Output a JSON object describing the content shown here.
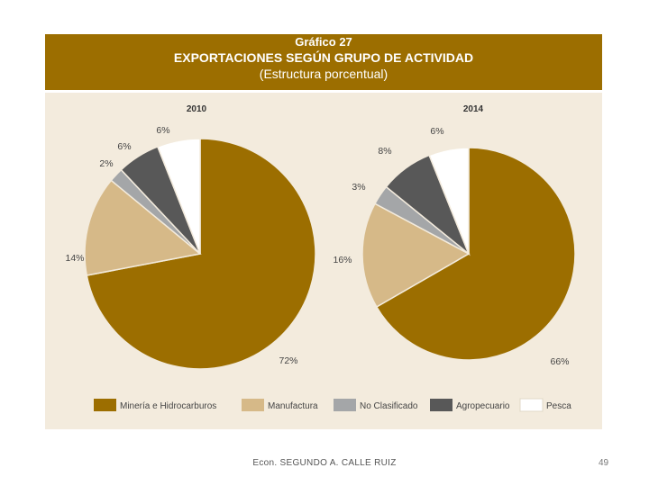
{
  "header": {
    "title": "Gráfico 27",
    "subtitle": "EXPORTACIONES SEGÚN GRUPO DE ACTIVIDAD",
    "note": "(Estructura porcentual)"
  },
  "chart_data": {
    "type": "pie",
    "title": "EXPORTACIONES SEGÚN GRUPO DE ACTIVIDAD",
    "subtitle": "(Estructura porcentual)",
    "legend_position": "bottom",
    "categories": [
      "Minería e Hidrocarburos",
      "Manufactura",
      "No Clasificado",
      "Agropecuario",
      "Pesca"
    ],
    "colors": [
      "#9c6e00",
      "#d6b988",
      "#a4a6a8",
      "#585858",
      "#ffffff"
    ],
    "series": [
      {
        "name": "2010",
        "values": [
          72,
          14,
          2,
          6,
          6
        ],
        "labels": [
          "72%",
          "14%",
          "2%",
          "6%",
          "6%"
        ]
      },
      {
        "name": "2014",
        "values": [
          66,
          16,
          3,
          8,
          6
        ],
        "labels": [
          "66%",
          "16%",
          "3%",
          "8%",
          "6%"
        ]
      }
    ]
  },
  "footer": {
    "author": "Econ. SEGUNDO A. CALLE RUIZ",
    "page": "49"
  }
}
